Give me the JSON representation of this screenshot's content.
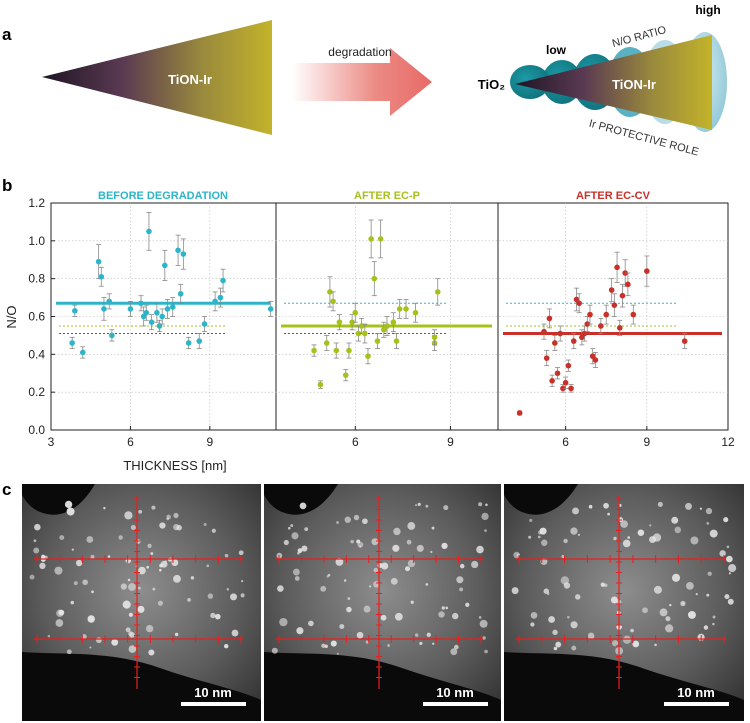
{
  "panel_a": {
    "label": "a",
    "wedge_left_text": "TiON-Ir",
    "arrow_text": "degradation",
    "tio2_text": "TiO₂",
    "wedge_right_text": "TiON-Ir",
    "low_text": "low",
    "high_text": "high",
    "ratio_text": "N/O RATIO",
    "protective_text": "Ir PROTECTIVE ROLE"
  },
  "panel_b": {
    "label": "b"
  },
  "panel_c": {
    "label": "c",
    "scale_bar_text": "10 nm"
  },
  "colors": {
    "before": "#2cb5c9",
    "ec_p": "#a7c11c",
    "ec_cv": "#c8302a",
    "overlay": "#e8201d"
  },
  "chart_data": {
    "type": "scatter",
    "ylabel": "N/O",
    "xlabel": "THICKNESS [nm]",
    "ylim": [
      0.0,
      1.2
    ],
    "yticks": [
      "0.0",
      "0.2",
      "0.4",
      "0.6",
      "0.8",
      "1.0",
      "1.2"
    ],
    "xticks": [
      "3",
      "6",
      "9",
      "6",
      "9",
      "6",
      "9",
      "12"
    ],
    "panels": [
      {
        "title": "BEFORE DEGRADATION",
        "xlim": [
          3,
          11.5
        ],
        "mean": 0.67,
        "points": [
          [
            3.8,
            0.46,
            0.03
          ],
          [
            3.9,
            0.63,
            0.03
          ],
          [
            4.2,
            0.41,
            0.03
          ],
          [
            4.8,
            0.89,
            0.09
          ],
          [
            4.9,
            0.81,
            0.05
          ],
          [
            5.0,
            0.64,
            0.06
          ],
          [
            5.2,
            0.68,
            0.04
          ],
          [
            5.3,
            0.5,
            0.03
          ],
          [
            6.0,
            0.64,
            0.04
          ],
          [
            6.4,
            0.67,
            0.04
          ],
          [
            6.5,
            0.6,
            0.05
          ],
          [
            6.6,
            0.62,
            0.04
          ],
          [
            6.7,
            1.05,
            0.1
          ],
          [
            6.8,
            0.57,
            0.04
          ],
          [
            7.0,
            0.62,
            0.05
          ],
          [
            7.1,
            0.55,
            0.03
          ],
          [
            7.2,
            0.6,
            0.04
          ],
          [
            7.3,
            0.87,
            0.08
          ],
          [
            7.4,
            0.64,
            0.05
          ],
          [
            7.6,
            0.65,
            0.05
          ],
          [
            7.8,
            0.95,
            0.08
          ],
          [
            7.9,
            0.72,
            0.05
          ],
          [
            8.0,
            0.93,
            0.08
          ],
          [
            8.2,
            0.46,
            0.03
          ],
          [
            8.6,
            0.47,
            0.04
          ],
          [
            8.8,
            0.56,
            0.04
          ],
          [
            9.2,
            0.68,
            0.05
          ],
          [
            9.4,
            0.7,
            0.05
          ],
          [
            9.5,
            0.79,
            0.06
          ],
          [
            11.3,
            0.64,
            0.04
          ]
        ]
      },
      {
        "title": "AFTER EC-P",
        "xlim": [
          3.5,
          10.5
        ],
        "mean": 0.55,
        "points": [
          [
            4.7,
            0.42,
            0.03
          ],
          [
            4.9,
            0.24,
            0.02
          ],
          [
            5.1,
            0.46,
            0.04
          ],
          [
            5.2,
            0.73,
            0.08
          ],
          [
            5.3,
            0.68,
            0.05
          ],
          [
            5.4,
            0.42,
            0.04
          ],
          [
            5.5,
            0.57,
            0.04
          ],
          [
            5.7,
            0.29,
            0.03
          ],
          [
            5.8,
            0.42,
            0.04
          ],
          [
            5.9,
            0.57,
            0.04
          ],
          [
            6.0,
            0.62,
            0.05
          ],
          [
            6.1,
            0.51,
            0.04
          ],
          [
            6.2,
            0.55,
            0.04
          ],
          [
            6.3,
            0.51,
            0.05
          ],
          [
            6.4,
            0.39,
            0.04
          ],
          [
            6.5,
            1.01,
            0.1
          ],
          [
            6.6,
            0.8,
            0.09
          ],
          [
            6.7,
            0.47,
            0.04
          ],
          [
            6.8,
            1.01,
            0.1
          ],
          [
            6.9,
            0.53,
            0.04
          ],
          [
            7.0,
            0.55,
            0.05
          ],
          [
            7.2,
            0.57,
            0.05
          ],
          [
            7.3,
            0.47,
            0.04
          ],
          [
            7.4,
            0.64,
            0.05
          ],
          [
            7.6,
            0.64,
            0.05
          ],
          [
            7.9,
            0.62,
            0.05
          ],
          [
            8.5,
            0.46,
            0.04
          ],
          [
            8.5,
            0.49,
            0.04
          ],
          [
            8.6,
            0.73,
            0.07
          ]
        ]
      },
      {
        "title": "AFTER EC-CV",
        "xlim": [
          3.5,
          12
        ],
        "mean": 0.51,
        "points": [
          [
            4.3,
            0.09,
            0.01
          ],
          [
            5.2,
            0.52,
            0.04
          ],
          [
            5.3,
            0.38,
            0.04
          ],
          [
            5.4,
            0.59,
            0.05
          ],
          [
            5.5,
            0.26,
            0.03
          ],
          [
            5.6,
            0.46,
            0.04
          ],
          [
            5.7,
            0.3,
            0.03
          ],
          [
            5.8,
            0.51,
            0.04
          ],
          [
            5.9,
            0.22,
            0.02
          ],
          [
            6.0,
            0.25,
            0.03
          ],
          [
            6.1,
            0.34,
            0.03
          ],
          [
            6.2,
            0.22,
            0.02
          ],
          [
            6.3,
            0.47,
            0.04
          ],
          [
            6.4,
            0.69,
            0.06
          ],
          [
            6.5,
            0.67,
            0.05
          ],
          [
            6.6,
            0.49,
            0.04
          ],
          [
            6.7,
            0.51,
            0.04
          ],
          [
            6.8,
            0.56,
            0.04
          ],
          [
            6.9,
            0.61,
            0.05
          ],
          [
            7.0,
            0.39,
            0.04
          ],
          [
            7.1,
            0.37,
            0.04
          ],
          [
            7.3,
            0.55,
            0.04
          ],
          [
            7.5,
            0.61,
            0.05
          ],
          [
            7.7,
            0.74,
            0.06
          ],
          [
            7.8,
            0.66,
            0.06
          ],
          [
            7.9,
            0.86,
            0.08
          ],
          [
            8.0,
            0.54,
            0.04
          ],
          [
            8.1,
            0.71,
            0.06
          ],
          [
            8.2,
            0.83,
            0.07
          ],
          [
            8.3,
            0.77,
            0.06
          ],
          [
            8.5,
            0.61,
            0.05
          ],
          [
            9.0,
            0.84,
            0.08
          ],
          [
            10.4,
            0.47,
            0.04
          ]
        ]
      }
    ]
  }
}
